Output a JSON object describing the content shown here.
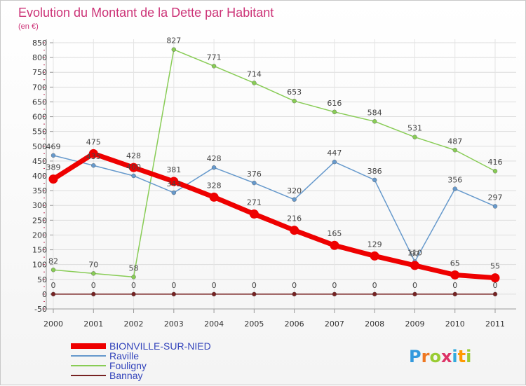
{
  "chart_data": {
    "type": "line",
    "title": "Evolution du Montant de la Dette par Habitant",
    "subtitle": "(en €)",
    "x": [
      "2000",
      "2001",
      "2002",
      "2003",
      "2004",
      "2005",
      "2006",
      "2007",
      "2008",
      "2009",
      "2010",
      "2011"
    ],
    "y_ticks": [
      "-50",
      "0",
      "50",
      "100",
      "150",
      "200",
      "250",
      "300",
      "350",
      "400",
      "450",
      "500",
      "550",
      "600",
      "650",
      "700",
      "750",
      "800",
      "850"
    ],
    "ylim": [
      -50,
      850
    ],
    "grid": true,
    "legend_position": "bottom-left",
    "series": [
      {
        "name": "BIONVILLE-SUR-NIED",
        "color": "#ee0000",
        "values": [
          389,
          475,
          428,
          381,
          328,
          271,
          216,
          165,
          129,
          97,
          65,
          55
        ],
        "labels": [
          "389",
          "475",
          "428",
          "381",
          "328",
          "271",
          "216",
          "165",
          "129",
          "97",
          "65",
          "55"
        ]
      },
      {
        "name": "Raville",
        "color": "#6699cc",
        "values": [
          469,
          435,
          400,
          343,
          428,
          376,
          320,
          447,
          386,
          110,
          356,
          297
        ],
        "labels": [
          "469",
          "435",
          "400",
          "343",
          "428",
          "376",
          "320",
          "447",
          "386",
          "110",
          "356",
          "297"
        ]
      },
      {
        "name": "Fouligny",
        "color": "#88cc55",
        "values": [
          82,
          70,
          58,
          827,
          771,
          714,
          653,
          616,
          584,
          531,
          487,
          416
        ],
        "labels": [
          "82",
          "70",
          "58",
          "827",
          "771",
          "714",
          "653",
          "616",
          "584",
          "531",
          "487",
          "416"
        ]
      },
      {
        "name": "Bannay",
        "color": "#772222",
        "values": [
          0,
          0,
          0,
          0,
          0,
          0,
          0,
          0,
          0,
          0,
          0,
          0
        ],
        "labels": [
          "0",
          "0",
          "0",
          "0",
          "0",
          "0",
          "0",
          "0",
          "0",
          "0",
          "0",
          "0"
        ]
      }
    ]
  },
  "logo": {
    "text": "Proxiti",
    "colors": [
      "#3399dd",
      "#ee7722",
      "#99cc33",
      "#dd3366",
      "#33aadd",
      "#ff9900",
      "#99cc33"
    ]
  }
}
